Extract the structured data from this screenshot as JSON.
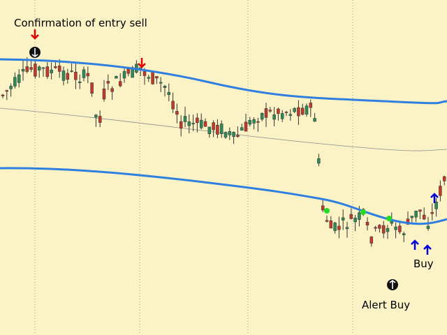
{
  "annotations": {
    "sell_label": "Confirmation of entry sell",
    "buy_label": "Buy",
    "alert_label": "Alert Buy"
  }
}
